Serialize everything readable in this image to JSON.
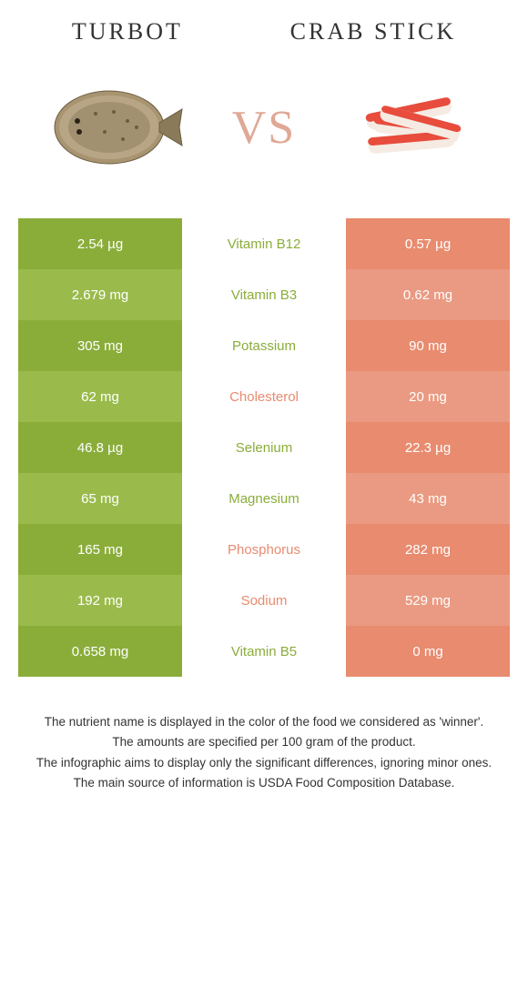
{
  "foods": {
    "left": {
      "name": "Turbot",
      "color_dark": "#8aad3a",
      "color_light": "#9abb4c"
    },
    "right": {
      "name": "Crab stick",
      "color_dark": "#e88b6f",
      "color_light": "#ea9a82"
    }
  },
  "vs_label": "VS",
  "rows": [
    {
      "left": "2.54 µg",
      "nutrient": "Vitamin B12",
      "right": "0.57 µg",
      "winner": "left"
    },
    {
      "left": "2.679 mg",
      "nutrient": "Vitamin B3",
      "right": "0.62 mg",
      "winner": "left"
    },
    {
      "left": "305 mg",
      "nutrient": "Potassium",
      "right": "90 mg",
      "winner": "left"
    },
    {
      "left": "62 mg",
      "nutrient": "Cholesterol",
      "right": "20 mg",
      "winner": "right"
    },
    {
      "left": "46.8 µg",
      "nutrient": "Selenium",
      "right": "22.3 µg",
      "winner": "left"
    },
    {
      "left": "65 mg",
      "nutrient": "Magnesium",
      "right": "43 mg",
      "winner": "left"
    },
    {
      "left": "165 mg",
      "nutrient": "Phosphorus",
      "right": "282 mg",
      "winner": "right"
    },
    {
      "left": "192 mg",
      "nutrient": "Sodium",
      "right": "529 mg",
      "winner": "right"
    },
    {
      "left": "0.658 mg",
      "nutrient": "Vitamin B5",
      "right": "0 mg",
      "winner": "left"
    }
  ],
  "footnotes": [
    "The nutrient name is displayed in the color of the food we considered as 'winner'.",
    "The amounts are specified per 100 gram of the product.",
    "The infographic aims to display only the significant differences, ignoring minor ones.",
    "The main source of information is USDA Food Composition Database."
  ]
}
